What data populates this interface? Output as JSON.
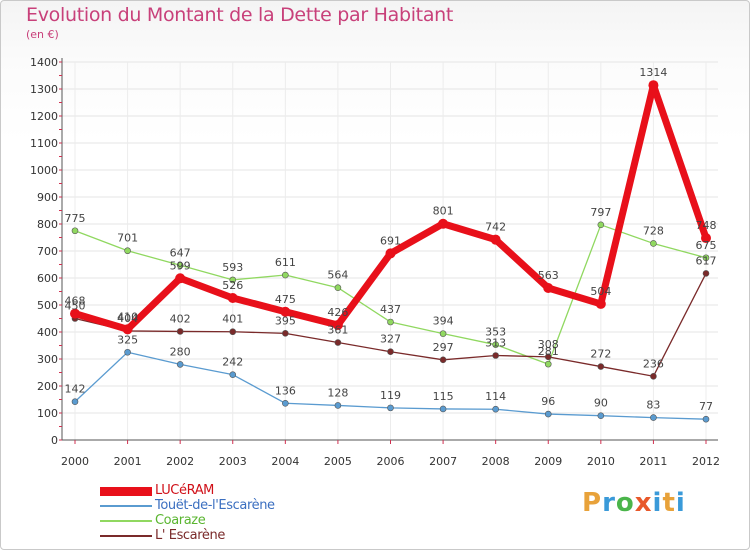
{
  "title": "Evolution du Montant de la Dette par Habitant",
  "subtitle": "(en €)",
  "logo": {
    "text": "Proxiti",
    "colors": [
      "#e8a23a",
      "#3a9ad9",
      "#4ab54a",
      "#e8582a",
      "#3a9ad9",
      "#e8a23a",
      "#3a9ad9"
    ]
  },
  "chart_data": {
    "type": "line",
    "x": [
      "2000",
      "2001",
      "2002",
      "2003",
      "2004",
      "2005",
      "2006",
      "2007",
      "2008",
      "2009",
      "2010",
      "2011",
      "2012"
    ],
    "ylim": [
      0,
      1400
    ],
    "yticks": [
      0,
      100,
      200,
      300,
      400,
      500,
      600,
      700,
      800,
      900,
      1000,
      1100,
      1200,
      1300,
      1400
    ],
    "grid": true,
    "legend_position": "bottom-left",
    "series": [
      {
        "name": "LUCéRAM",
        "color": "#e8101a",
        "width": 7,
        "values": [
          468,
          410,
          599,
          526,
          475,
          426,
          691,
          801,
          742,
          563,
          504,
          1314,
          748
        ]
      },
      {
        "name": "Touët-de-l'Escarène",
        "color": "#5a9bd0",
        "width": 1.3,
        "values": [
          142,
          325,
          280,
          242,
          136,
          128,
          119,
          115,
          114,
          96,
          90,
          83,
          77
        ]
      },
      {
        "name": "Coaraze",
        "color": "#90d860",
        "width": 1.3,
        "values": [
          775,
          701,
          647,
          593,
          611,
          564,
          437,
          394,
          353,
          281,
          797,
          728,
          675
        ]
      },
      {
        "name": "L' Escarène",
        "color": "#7a2a2a",
        "width": 1.3,
        "values": [
          450,
          404,
          402,
          401,
          395,
          361,
          327,
          297,
          313,
          308,
          272,
          236,
          617
        ]
      }
    ]
  }
}
